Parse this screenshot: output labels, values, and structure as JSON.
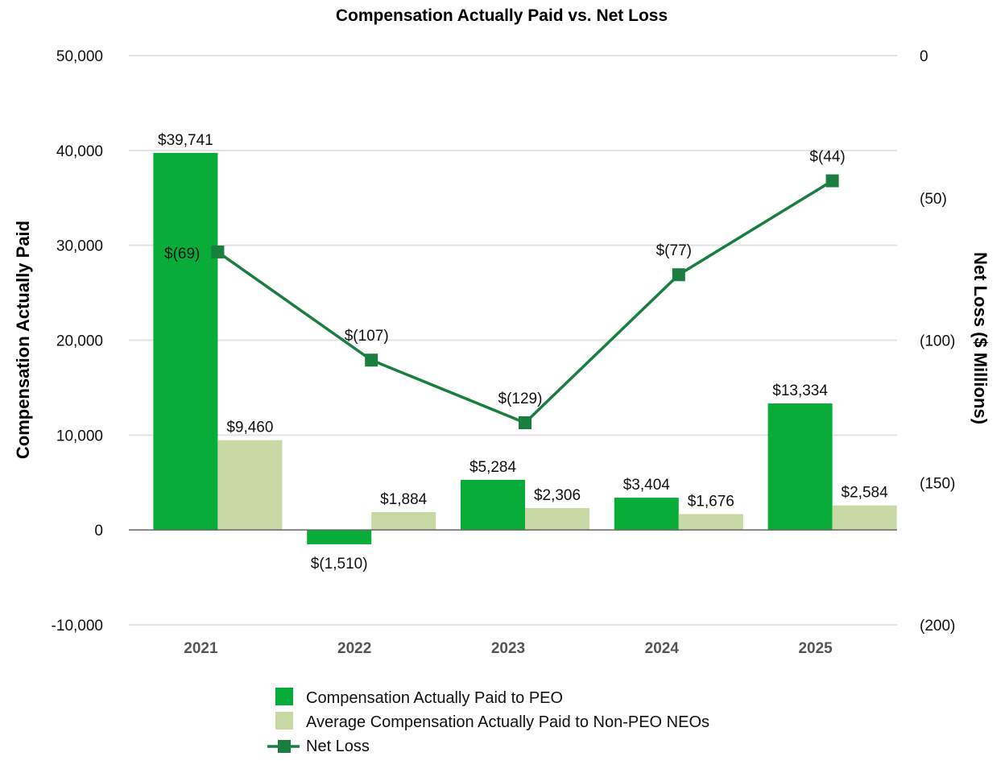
{
  "chart_data": {
    "type": "bar",
    "title": "Compensation Actually Paid vs. Net Loss",
    "categories": [
      "2021",
      "2022",
      "2023",
      "2024",
      "2025"
    ],
    "series": [
      {
        "name": "Compensation Actually Paid to PEO",
        "kind": "bar",
        "axis": "left",
        "color": "#08ad39",
        "values": [
          39741,
          -1510,
          5284,
          3404,
          13334
        ],
        "labels": [
          "$39,741",
          "$(1,510)",
          "$5,284",
          "$3,404",
          "$13,334"
        ]
      },
      {
        "name": "Average Compensation Actually Paid to Non-PEO NEOs",
        "kind": "bar",
        "axis": "left",
        "color": "#c8d9a5",
        "values": [
          9460,
          1884,
          2306,
          1676,
          2584
        ],
        "labels": [
          "$9,460",
          "$1,884",
          "$2,306",
          "$1,676",
          "$2,584"
        ]
      },
      {
        "name": "Net Loss",
        "kind": "line",
        "axis": "right",
        "color": "#1a7f3e",
        "values": [
          -69,
          -107,
          -129,
          -77,
          -44
        ],
        "labels": [
          "$(69)",
          "$(107)",
          "$(129)",
          "$(77)",
          "$(44)"
        ]
      }
    ],
    "left_axis": {
      "label": "Compensation Actually Paid",
      "min": -10000,
      "max": 50000,
      "ticks": [
        -10000,
        0,
        10000,
        20000,
        30000,
        40000,
        50000
      ],
      "tick_labels": [
        "-10,000",
        "0",
        "10,000",
        "20,000",
        "30,000",
        "40,000",
        "50,000"
      ]
    },
    "right_axis": {
      "label": "Net Loss ($ Millions)",
      "min": -200,
      "max": 0,
      "ticks": [
        0,
        -50,
        -100,
        -150,
        -200
      ],
      "tick_labels": [
        "0",
        "(50)",
        "(100)",
        "(150)",
        "(200)"
      ]
    },
    "grid": true,
    "legend_position": "bottom"
  }
}
